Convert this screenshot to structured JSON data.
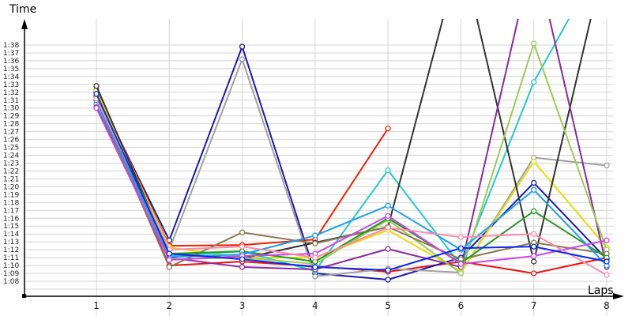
{
  "chart_data": {
    "type": "line",
    "title": "",
    "xlabel": "Laps",
    "ylabel": "Time",
    "x": [
      1,
      2,
      3,
      4,
      5,
      6,
      7,
      8
    ],
    "x_ticks": [
      "1",
      "2",
      "3",
      "4",
      "5",
      "6",
      "7",
      "8"
    ],
    "y_ticks": [
      "1:08",
      "1:09",
      "1:10",
      "1:11",
      "1:12",
      "1:13",
      "1:14",
      "1:15",
      "1:16",
      "1:17",
      "1:18",
      "1:19",
      "1:20",
      "1:21",
      "1:22",
      "1:23",
      "1:24",
      "1:25",
      "1:26",
      "1:27",
      "1:28",
      "1:29",
      "1:30",
      "1:31",
      "1:32",
      "1:33",
      "1:34",
      "1:35",
      "1:36",
      "1:37",
      "1:38"
    ],
    "y_unit": "seconds",
    "ylim": [
      67,
      101
    ],
    "grid": true,
    "legend": "none",
    "series": [
      {
        "name": "red",
        "color": "#ee1111",
        "values": [
          91.0,
          70.0,
          70.5,
          69.9,
          69.2,
          70.5,
          69.0,
          71.0
        ]
      },
      {
        "name": "navy",
        "color": "#1a1ab0",
        "values": [
          92.0,
          73.2,
          97.8,
          69.0,
          68.2,
          71.0,
          80.5,
          70.8
        ]
      },
      {
        "name": "gray",
        "color": "#a0a0a0",
        "values": [
          91.5,
          72.0,
          96.2,
          68.6,
          69.6,
          69.1,
          83.7,
          82.7
        ]
      },
      {
        "name": "orange-red",
        "color": "#ee2200",
        "values": [
          92.3,
          72.5,
          72.6,
          73.3,
          87.4,
          null,
          null,
          null
        ]
      },
      {
        "name": "yellow",
        "color": "#e6dc00",
        "values": [
          92.2,
          72.3,
          71.0,
          71.0,
          74.5,
          69.2,
          83.2,
          72.3
        ]
      },
      {
        "name": "cyan",
        "color": "#22c8d0",
        "values": [
          90.5,
          71.2,
          71.8,
          69.3,
          82.1,
          70.0,
          93.3,
          110.0
        ]
      },
      {
        "name": "dark-gray",
        "color": "#333333",
        "values": [
          92.8,
          71.5,
          70.9,
          72.9,
          74.9,
          110.0,
          70.5,
          110.0
        ]
      },
      {
        "name": "purple",
        "color": "#8a2a9e",
        "values": [
          90.1,
          71.0,
          69.8,
          69.5,
          72.1,
          69.8,
          110.0,
          69.8
        ]
      },
      {
        "name": "lime",
        "color": "#99cc55",
        "values": [
          91.2,
          70.8,
          71.0,
          70.2,
          75.8,
          69.0,
          98.2,
          72.0
        ]
      },
      {
        "name": "olive",
        "color": "#8a7a50",
        "values": [
          91.0,
          69.8,
          74.2,
          72.8,
          74.9,
          70.8,
          72.9,
          71.5
        ]
      },
      {
        "name": "green",
        "color": "#229922",
        "values": [
          91.5,
          71.5,
          71.8,
          70.5,
          76.0,
          70.3,
          76.9,
          71.0
        ]
      },
      {
        "name": "sky-blue",
        "color": "#1aa0ee",
        "values": [
          91.0,
          71.1,
          71.4,
          73.8,
          77.6,
          72.0,
          79.6,
          70.0
        ]
      },
      {
        "name": "magenta",
        "color": "#cc44ee",
        "values": [
          90.0,
          70.7,
          71.2,
          71.5,
          76.3,
          70.2,
          71.2,
          73.2
        ]
      },
      {
        "name": "pink",
        "color": "#ff88aa",
        "values": [
          91.2,
          72.0,
          72.4,
          71.0,
          74.8,
          73.6,
          74.0,
          68.8
        ]
      },
      {
        "name": "blue",
        "color": "#0a2af0",
        "values": [
          91.8,
          71.5,
          70.8,
          69.8,
          69.4,
          72.2,
          72.4,
          70.5
        ]
      }
    ]
  }
}
